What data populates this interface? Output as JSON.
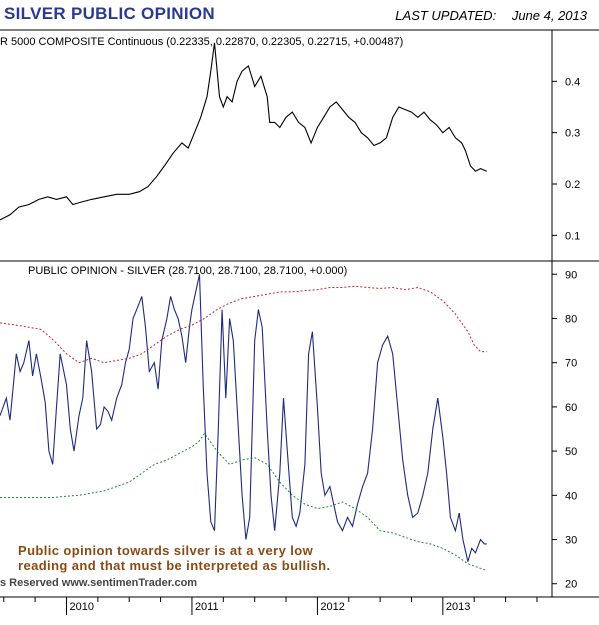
{
  "header": {
    "title": "SILVER PUBLIC OPINION",
    "updated_label": "LAST UPDATED:",
    "updated_date": "June 4, 2013"
  },
  "footer": {
    "copyright": "s Reserved  www.sentimenTrader.com"
  },
  "chart_data": [
    {
      "type": "line",
      "label": "R 5000 COMPOSITE Continuous (0.22335, 0.22870, 0.22305, 0.22715, +0.00487)",
      "y_ticks": [
        0.1,
        0.2,
        0.3,
        0.4
      ],
      "y_tick_labels": [
        "0.1",
        "0.2",
        "0.3",
        "0.4"
      ],
      "ylim": [
        0.05,
        0.5
      ],
      "x_ticks": [
        "2010",
        "2011",
        "2012",
        "2013"
      ],
      "x_tick_positions": [
        2010.0,
        2011.0,
        2012.0,
        2013.0
      ],
      "xlim": [
        2009.47,
        2013.87
      ],
      "series": [
        {
          "color": "#000000",
          "x": [
            2009.47,
            2009.55,
            2009.62,
            2009.7,
            2009.78,
            2009.85,
            2009.92,
            2010.0,
            2010.05,
            2010.12,
            2010.2,
            2010.3,
            2010.4,
            2010.5,
            2010.58,
            2010.65,
            2010.72,
            2010.78,
            2010.85,
            2010.92,
            2010.97,
            2011.02,
            2011.07,
            2011.12,
            2011.15,
            2011.18,
            2011.22,
            2011.25,
            2011.28,
            2011.32,
            2011.36,
            2011.4,
            2011.45,
            2011.5,
            2011.55,
            2011.6,
            2011.62,
            2011.66,
            2011.7,
            2011.75,
            2011.8,
            2011.85,
            2011.9,
            2011.95,
            2012.0,
            2012.05,
            2012.1,
            2012.15,
            2012.2,
            2012.25,
            2012.3,
            2012.35,
            2012.4,
            2012.45,
            2012.5,
            2012.55,
            2012.6,
            2012.65,
            2012.7,
            2012.75,
            2012.8,
            2012.85,
            2012.9,
            2012.95,
            2013.0,
            2013.05,
            2013.1,
            2013.15,
            2013.18,
            2013.22,
            2013.26,
            2013.3,
            2013.35
          ],
          "y": [
            0.13,
            0.14,
            0.155,
            0.16,
            0.17,
            0.175,
            0.17,
            0.175,
            0.16,
            0.165,
            0.17,
            0.175,
            0.18,
            0.18,
            0.185,
            0.195,
            0.215,
            0.235,
            0.26,
            0.28,
            0.27,
            0.3,
            0.33,
            0.37,
            0.42,
            0.475,
            0.37,
            0.35,
            0.37,
            0.36,
            0.4,
            0.42,
            0.43,
            0.39,
            0.41,
            0.37,
            0.32,
            0.32,
            0.31,
            0.33,
            0.34,
            0.32,
            0.31,
            0.28,
            0.31,
            0.33,
            0.35,
            0.36,
            0.345,
            0.33,
            0.32,
            0.3,
            0.29,
            0.275,
            0.28,
            0.29,
            0.33,
            0.35,
            0.345,
            0.34,
            0.33,
            0.34,
            0.325,
            0.315,
            0.3,
            0.31,
            0.29,
            0.28,
            0.265,
            0.235,
            0.225,
            0.23,
            0.225
          ]
        }
      ]
    },
    {
      "type": "line",
      "label": "PUBLIC OPINION - SILVER (28.7100, 28.7100, 28.7100, +0.000)",
      "y_ticks": [
        20,
        30,
        40,
        50,
        60,
        70,
        80,
        90
      ],
      "y_tick_labels": [
        "20",
        "30",
        "40",
        "50",
        "60",
        "70",
        "80",
        "90"
      ],
      "ylim": [
        17,
        93
      ],
      "x_ticks": [
        "2010",
        "2011",
        "2012",
        "2013"
      ],
      "x_tick_positions": [
        2010.0,
        2011.0,
        2012.0,
        2013.0
      ],
      "xlim": [
        2009.47,
        2013.87
      ],
      "annotation": [
        "Public opinion towards silver is at a very low",
        "reading and that must be interpreted as bullish."
      ],
      "series": [
        {
          "color": "#1f2a80",
          "dash": "",
          "x": [
            2009.47,
            2009.52,
            2009.55,
            2009.58,
            2009.6,
            2009.63,
            2009.66,
            2009.7,
            2009.73,
            2009.76,
            2009.8,
            2009.83,
            2009.86,
            2009.89,
            2009.92,
            2009.95,
            2010.0,
            2010.03,
            2010.06,
            2010.1,
            2010.13,
            2010.16,
            2010.2,
            2010.24,
            2010.27,
            2010.3,
            2010.33,
            2010.36,
            2010.4,
            2010.44,
            2010.47,
            2010.5,
            2010.53,
            2010.56,
            2010.6,
            2010.63,
            2010.66,
            2010.7,
            2010.73,
            2010.76,
            2010.8,
            2010.83,
            2010.86,
            2010.89,
            2010.92,
            2010.95,
            2010.98,
            2011.0,
            2011.03,
            2011.06,
            2011.09,
            2011.12,
            2011.15,
            2011.18,
            2011.21,
            2011.24,
            2011.27,
            2011.3,
            2011.33,
            2011.36,
            2011.4,
            2011.43,
            2011.46,
            2011.5,
            2011.53,
            2011.56,
            2011.6,
            2011.63,
            2011.66,
            2011.7,
            2011.73,
            2011.76,
            2011.8,
            2011.83,
            2011.86,
            2011.9,
            2011.93,
            2011.96,
            2012.0,
            2012.03,
            2012.06,
            2012.1,
            2012.13,
            2012.16,
            2012.2,
            2012.24,
            2012.28,
            2012.32,
            2012.36,
            2012.4,
            2012.44,
            2012.48,
            2012.52,
            2012.56,
            2012.6,
            2012.64,
            2012.68,
            2012.72,
            2012.76,
            2012.8,
            2012.84,
            2012.88,
            2012.92,
            2012.96,
            2013.0,
            2013.03,
            2013.06,
            2013.1,
            2013.13,
            2013.16,
            2013.2,
            2013.23,
            2013.26,
            2013.3,
            2013.33,
            2013.35
          ],
          "y": [
            58,
            62,
            57,
            66,
            72,
            68,
            70,
            75,
            67,
            72,
            66,
            61,
            50,
            47,
            60,
            72,
            65,
            55,
            50,
            58,
            62,
            75,
            68,
            55,
            56,
            60,
            59,
            57,
            62,
            65,
            70,
            73,
            80,
            82,
            85,
            78,
            68,
            70,
            64,
            75,
            80,
            85,
            82,
            80,
            76,
            70,
            78,
            82,
            86,
            90,
            65,
            45,
            34,
            32,
            55,
            82,
            62,
            80,
            75,
            60,
            40,
            30,
            35,
            75,
            82,
            78,
            55,
            40,
            32,
            45,
            62,
            50,
            35,
            33,
            36,
            47,
            72,
            77,
            60,
            45,
            40,
            42,
            38,
            34,
            32,
            35,
            33,
            38,
            42,
            45,
            55,
            70,
            74,
            76,
            72,
            60,
            48,
            40,
            35,
            36,
            40,
            45,
            55,
            62,
            53,
            45,
            35,
            32,
            36,
            30,
            25,
            28,
            27,
            30,
            29,
            29
          ]
        },
        {
          "color": "#cc2222",
          "dash": "2,2",
          "x": [
            2009.47,
            2009.6,
            2009.7,
            2009.8,
            2009.9,
            2010.0,
            2010.1,
            2010.2,
            2010.3,
            2010.4,
            2010.5,
            2010.6,
            2010.7,
            2010.8,
            2010.9,
            2011.0,
            2011.1,
            2011.2,
            2011.3,
            2011.4,
            2011.5,
            2011.6,
            2011.7,
            2011.8,
            2011.9,
            2012.0,
            2012.1,
            2012.2,
            2012.3,
            2012.4,
            2012.5,
            2012.6,
            2012.7,
            2012.8,
            2012.9,
            2013.0,
            2013.1,
            2013.2,
            2013.25,
            2013.3,
            2013.35
          ],
          "y": [
            79,
            78.5,
            78,
            77.5,
            75,
            72,
            70,
            71,
            70,
            70.5,
            71,
            72,
            74,
            76,
            77.5,
            78.5,
            80,
            82,
            83.5,
            84.5,
            85,
            85.5,
            86,
            86,
            86.3,
            86.5,
            87,
            87,
            87.3,
            87,
            86.8,
            87,
            86.5,
            87,
            86,
            84,
            81,
            77,
            74,
            72.5,
            72.5
          ]
        },
        {
          "color": "#1f8a2a",
          "dash": "2,2",
          "x": [
            2009.47,
            2009.6,
            2009.7,
            2009.8,
            2009.9,
            2010.0,
            2010.1,
            2010.2,
            2010.3,
            2010.4,
            2010.5,
            2010.6,
            2010.7,
            2010.8,
            2010.9,
            2011.0,
            2011.05,
            2011.1,
            2011.2,
            2011.3,
            2011.4,
            2011.5,
            2011.6,
            2011.7,
            2011.8,
            2011.9,
            2012.0,
            2012.1,
            2012.2,
            2012.3,
            2012.4,
            2012.5,
            2012.6,
            2012.7,
            2012.8,
            2012.9,
            2013.0,
            2013.1,
            2013.2,
            2013.3,
            2013.35
          ],
          "y": [
            39.5,
            39.5,
            39.5,
            39.5,
            39.5,
            39.8,
            40,
            40.5,
            41,
            42,
            43,
            45,
            47,
            48,
            49.5,
            51,
            52,
            54,
            50,
            47,
            48,
            48.5,
            47,
            43,
            40,
            38,
            37,
            37.5,
            38.5,
            37,
            35,
            32,
            31.5,
            30.5,
            29.5,
            29,
            28,
            26.5,
            24.5,
            23.5,
            23
          ]
        }
      ]
    }
  ]
}
